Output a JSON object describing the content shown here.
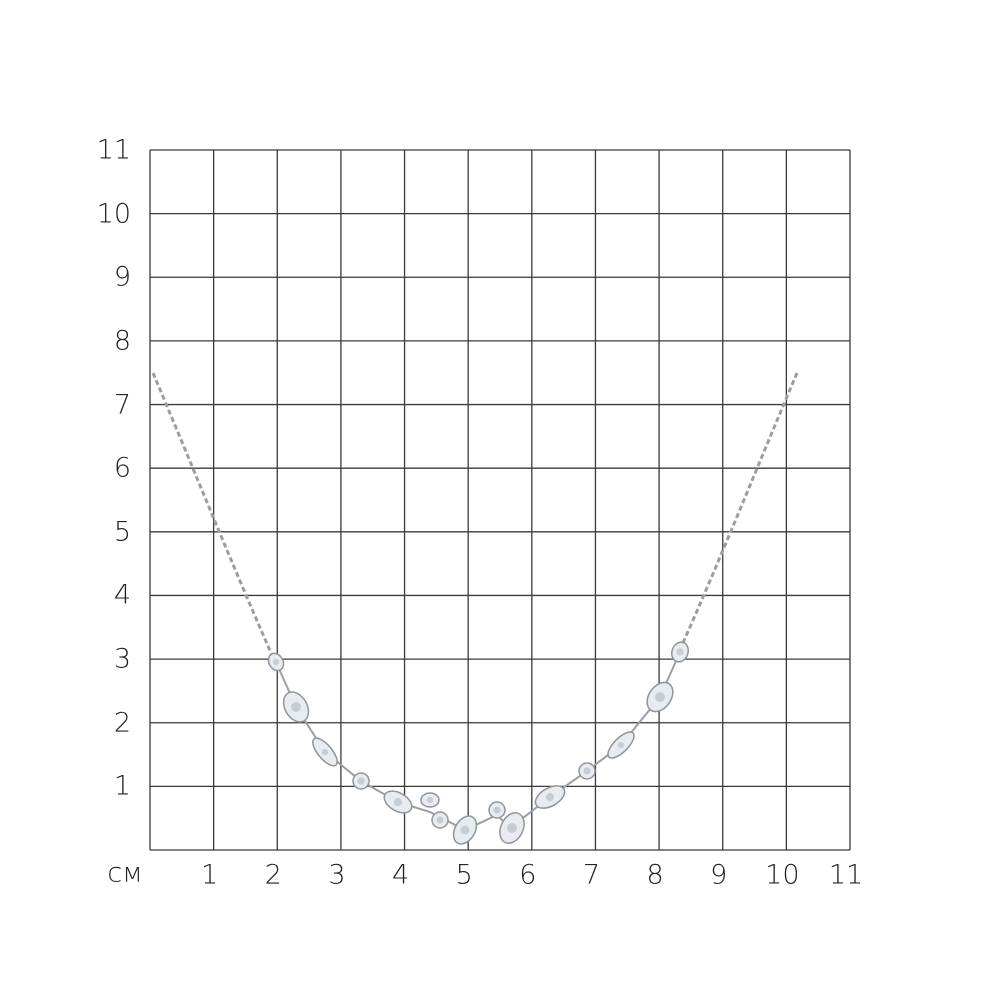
{
  "unit_label": "см",
  "y_labels": [
    "1",
    "2",
    "3",
    "4",
    "5",
    "6",
    "7",
    "8",
    "9",
    "10",
    "11"
  ],
  "x_labels": [
    "1",
    "2",
    "3",
    "4",
    "5",
    "6",
    "7",
    "8",
    "9",
    "10",
    "11"
  ],
  "grid": {
    "cells": 11,
    "line_color": "#3a3a3a"
  },
  "product": {
    "type": "necklace",
    "metal_color": "#9a9ea4",
    "stone_color": "#e8ecf0"
  }
}
